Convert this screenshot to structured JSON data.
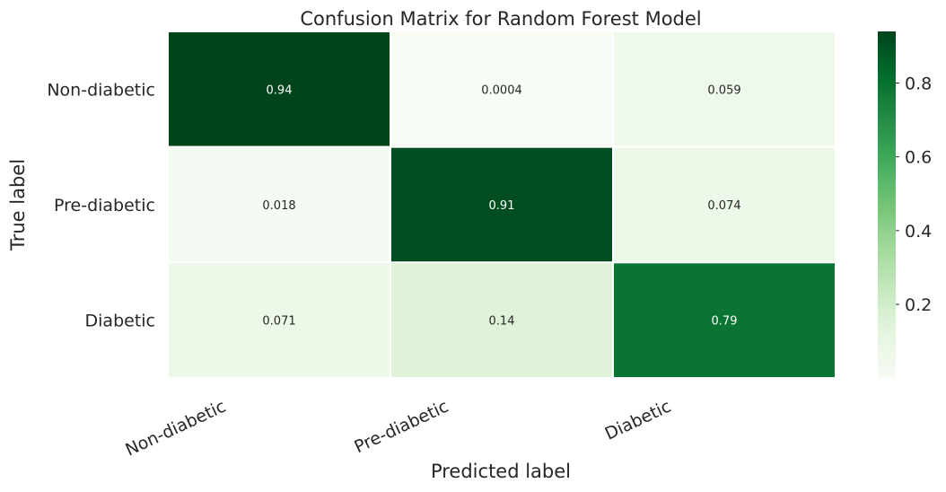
{
  "chart_data": {
    "type": "heatmap",
    "title": "Confusion Matrix for Random Forest Model",
    "xlabel": "Predicted label",
    "ylabel": "True label",
    "x_categories": [
      "Non-diabetic",
      "Pre-diabetic",
      "Diabetic"
    ],
    "y_categories": [
      "Non-diabetic",
      "Pre-diabetic",
      "Diabetic"
    ],
    "values": [
      [
        0.94,
        0.0004,
        0.059
      ],
      [
        0.018,
        0.91,
        0.074
      ],
      [
        0.071,
        0.14,
        0.79
      ]
    ],
    "cell_labels": [
      [
        "0.94",
        "0.0004",
        "0.059"
      ],
      [
        "0.018",
        "0.91",
        "0.074"
      ],
      [
        "0.071",
        "0.14",
        "0.79"
      ]
    ],
    "colormap": "Greens",
    "colorbar": {
      "range": [
        0.0004,
        0.94
      ],
      "ticks": [
        0.2,
        0.4,
        0.6,
        0.8
      ],
      "tick_labels": [
        "0.2",
        "0.4",
        "0.6",
        "0.8"
      ]
    },
    "colors": {
      "low": "#f7fcf5",
      "high": "#00441b",
      "grid": "#ffffff",
      "text_dark": "#262626",
      "text_light": "#ffffff"
    }
  }
}
